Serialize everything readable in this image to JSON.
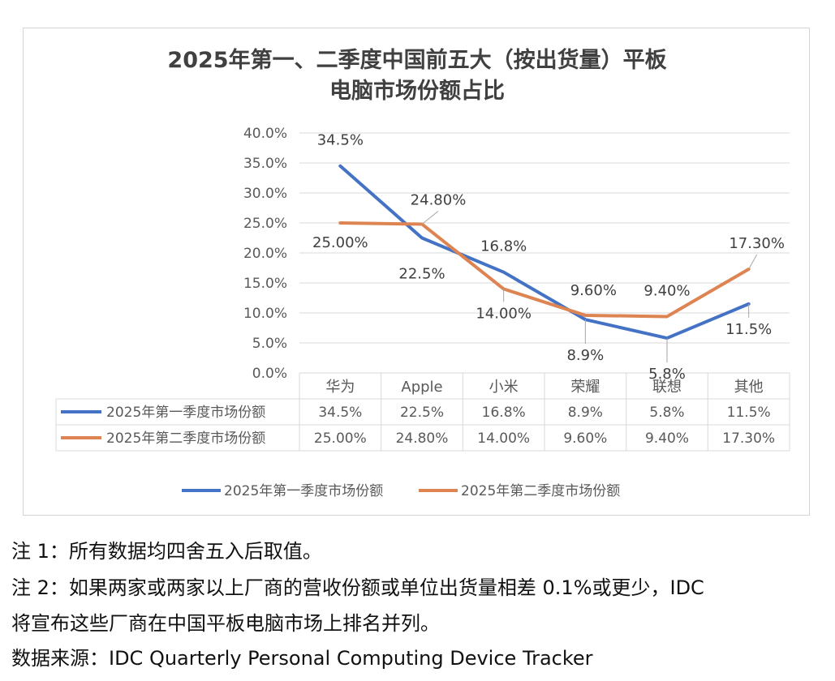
{
  "chart_data": {
    "type": "line",
    "title_lines": [
      "2025年第一、二季度中国前五大（按出货量）平板",
      "电脑市场份额占比"
    ],
    "categories": [
      "华为",
      "Apple",
      "小米",
      "荣耀",
      "联想",
      "其他"
    ],
    "y_ticks": [
      "40.0%",
      "35.0%",
      "30.0%",
      "25.0%",
      "20.0%",
      "15.0%",
      "10.0%",
      "5.0%",
      "0.0%"
    ],
    "ylim": [
      0,
      40
    ],
    "grid": true,
    "legend_position": "bottom",
    "series": [
      {
        "name": "2025年第一季度市场份额",
        "color": "#4472c4",
        "values": [
          34.5,
          22.5,
          16.8,
          8.9,
          5.8,
          11.5
        ],
        "labels": [
          "34.5%",
          "22.5%",
          "16.8%",
          "8.9%",
          "5.8%",
          "11.5%"
        ]
      },
      {
        "name": "2025年第二季度市场份额",
        "color": "#dd8452",
        "values": [
          25.0,
          24.8,
          14.0,
          9.6,
          9.4,
          17.3
        ],
        "labels": [
          "25.00%",
          "24.80%",
          "14.00%",
          "9.60%",
          "9.40%",
          "17.30%"
        ]
      }
    ]
  },
  "notes": {
    "note1": "注 1：所有数据均四舍五入后取值。",
    "note2_line1": "注 2：如果两家或两家以上厂商的营收份额或单位出货量相差 0.1%或更少，IDC",
    "note2_line2": "将宣布这些厂商在中国平板电脑市场上排名并列。",
    "source": "数据来源：IDC Quarterly Personal Computing Device Tracker"
  }
}
